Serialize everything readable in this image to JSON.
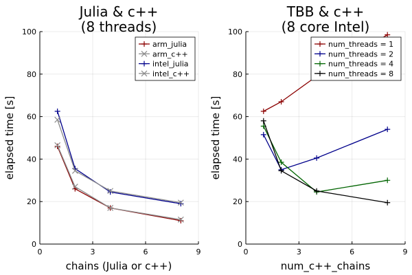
{
  "chart_data": [
    {
      "type": "line",
      "title": [
        "Julia & c++",
        "(8 threads)"
      ],
      "xlabel": "chains (Julia or c++)",
      "ylabel": "elapsed time [s]",
      "xlim": [
        0,
        9
      ],
      "ylim": [
        0,
        100
      ],
      "xticks": [
        0,
        3,
        6,
        9
      ],
      "yticks": [
        0,
        20,
        40,
        60,
        80,
        100
      ],
      "grid": true,
      "legend_position": "top-right",
      "series": [
        {
          "name": "arm_julia",
          "color": "#8b0000",
          "marker": "plus",
          "x": [
            1,
            2,
            4,
            8
          ],
          "y": [
            46,
            26,
            17,
            11
          ]
        },
        {
          "name": "arm_c++",
          "color": "#8c8c8c",
          "marker": "x",
          "x": [
            1,
            2,
            4,
            8
          ],
          "y": [
            46.5,
            27,
            17,
            11.5
          ]
        },
        {
          "name": "intel_julia",
          "color": "#00008b",
          "marker": "plus",
          "x": [
            1,
            2,
            4,
            8
          ],
          "y": [
            62.5,
            35.5,
            24.5,
            19
          ]
        },
        {
          "name": "intel_c++",
          "color": "#8c8c8c",
          "marker": "x",
          "x": [
            1,
            2,
            4,
            8
          ],
          "y": [
            58.5,
            34.5,
            25,
            19.5
          ]
        }
      ]
    },
    {
      "type": "line",
      "title": [
        "TBB & c++",
        "(8 core Intel)"
      ],
      "xlabel": "num_c++_chains",
      "ylabel": "elapsed time [s]",
      "xlim": [
        0,
        9
      ],
      "ylim": [
        0,
        100
      ],
      "xticks": [
        0,
        3,
        6,
        9
      ],
      "yticks": [
        0,
        20,
        40,
        60,
        80,
        100
      ],
      "grid": true,
      "legend_position": "top-right",
      "series": [
        {
          "name": "num_threads = 1",
          "color": "#8b0000",
          "marker": "plus",
          "x": [
            1,
            2,
            4,
            8
          ],
          "y": [
            62.5,
            67,
            79,
            98.5
          ]
        },
        {
          "name": "num_threads = 2",
          "color": "#00008b",
          "marker": "plus",
          "x": [
            1,
            2,
            4,
            8
          ],
          "y": [
            51.5,
            35,
            40.5,
            54
          ]
        },
        {
          "name": "num_threads = 4",
          "color": "#006400",
          "marker": "plus",
          "x": [
            1,
            2,
            4,
            8
          ],
          "y": [
            55.5,
            38.5,
            24.5,
            30
          ]
        },
        {
          "name": "num_threads = 8",
          "color": "#000000",
          "marker": "plus",
          "x": [
            1,
            2,
            4,
            8
          ],
          "y": [
            58,
            34.5,
            25,
            19.5
          ]
        }
      ]
    }
  ]
}
